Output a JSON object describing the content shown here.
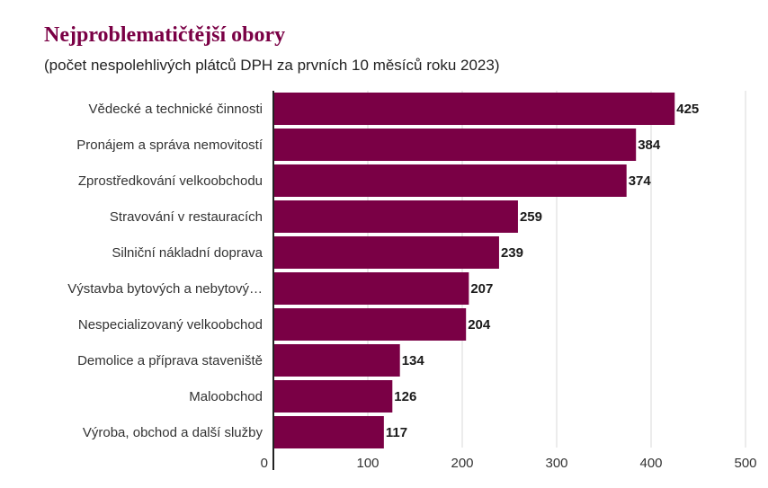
{
  "chart_data": {
    "type": "bar",
    "orientation": "horizontal",
    "title": "Nejproblematičtější obory",
    "subtitle": "(počet nespolehlivých plátců DPH za prvních 10 měsíců roku 2023)",
    "categories": [
      "Vědecké a technické činnosti",
      "Pronájem a správa nemovitostí",
      "Zprostředkování velkoobchodu",
      "Stravování v restauracích",
      "Silniční nákladní doprava",
      "Výstavba bytových a nebytový…",
      "Nespecializovaný velkoobchod",
      "Demolice a příprava staveniště",
      "Maloobchod",
      "Výroba, obchod a další služby"
    ],
    "values": [
      425,
      384,
      374,
      259,
      239,
      207,
      204,
      134,
      126,
      117
    ],
    "value_labels": [
      "425",
      "384",
      "374",
      "259",
      "239",
      "207",
      "204",
      "134",
      "126",
      "117"
    ],
    "xlim": [
      0,
      500
    ],
    "xticks": [
      0,
      100,
      200,
      300,
      400,
      500
    ],
    "xtick_labels": [
      "0",
      "100",
      "200",
      "300",
      "400",
      "500"
    ],
    "grid": true,
    "bar_color": "#7a0045",
    "title_color": "#7a0045",
    "grid_color": "#d9d9d9"
  }
}
